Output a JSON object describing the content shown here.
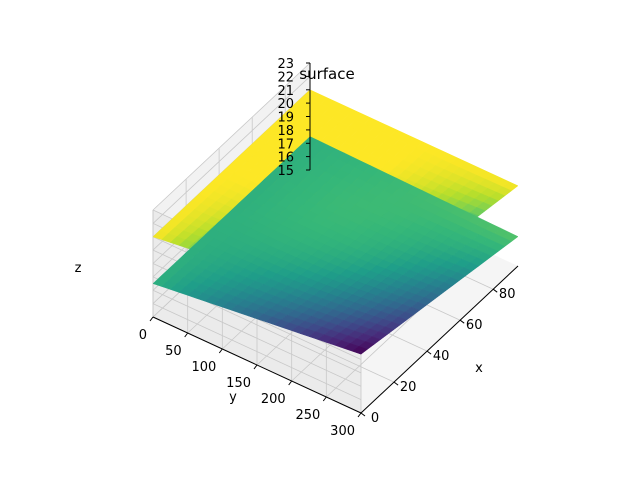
{
  "chart_data": {
    "type": "surface",
    "title": "surface",
    "xlabel": "x",
    "ylabel": "y",
    "zlabel": "z",
    "xlim": [
      0,
      95
    ],
    "ylim": [
      0,
      300
    ],
    "zlim": [
      15,
      23
    ],
    "x_ticks": [
      0,
      20,
      40,
      60,
      80
    ],
    "y_ticks": [
      0,
      50,
      100,
      150,
      200,
      250,
      300
    ],
    "z_ticks": [
      15,
      16,
      17,
      18,
      19,
      20,
      21,
      22,
      23
    ],
    "colormap": "viridis",
    "grid": true,
    "series": [
      {
        "corner_values": {
          "x0_y0": 21.0,
          "x95_y0": 21.0,
          "x0_y300": 23.0,
          "x95_y300": 21.0
        },
        "color_range": [
          21.0,
          23.0
        ]
      },
      {
        "corner_values": {
          "x0_y0": 17.5,
          "x95_y0": 17.5,
          "x0_y300": 19.4,
          "x95_y300": 17.2
        },
        "color_range": [
          16.4,
          19.4
        ]
      }
    ]
  },
  "colors": {
    "pane_back": "#ebebeb",
    "pane_side": "#f2f2f2",
    "pane_floor": "#f5f5f5",
    "grid": "#c8c8c8",
    "axis_line": "#000000"
  }
}
